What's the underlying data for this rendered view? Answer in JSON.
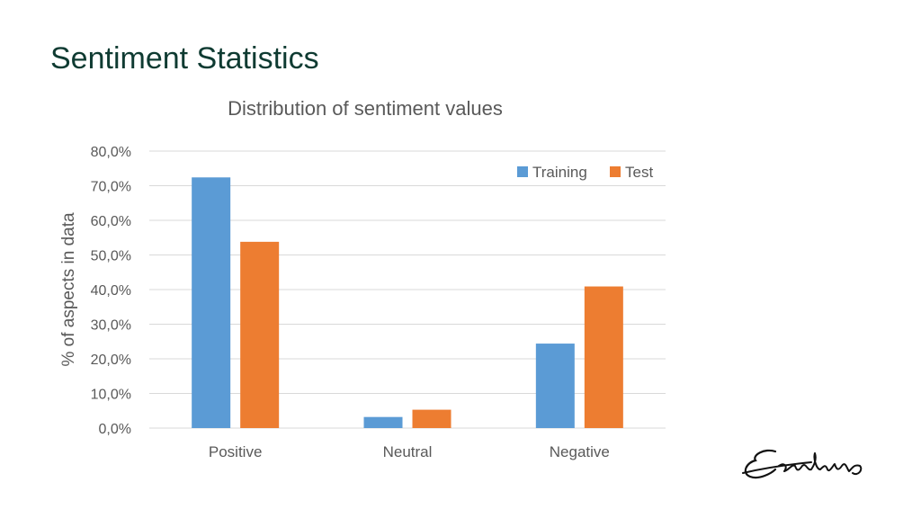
{
  "slide": {
    "title": "Sentiment Statistics"
  },
  "colors": {
    "training": "#5b9bd5",
    "test": "#ed7d31"
  },
  "chart_data": {
    "type": "bar",
    "title": "Distribution of sentiment values",
    "xlabel": "",
    "ylabel": "% of aspects in data",
    "categories": [
      "Positive",
      "Neutral",
      "Negative"
    ],
    "series": [
      {
        "name": "Training",
        "values": [
          72.4,
          3.2,
          24.4
        ]
      },
      {
        "name": "Test",
        "values": [
          53.8,
          5.3,
          40.9
        ]
      }
    ],
    "ylim": [
      0,
      80
    ],
    "yticks": [
      "0,0%",
      "10,0%",
      "20,0%",
      "30,0%",
      "40,0%",
      "50,0%",
      "60,0%",
      "70,0%",
      "80,0%"
    ],
    "grid": true,
    "legend": "top-right"
  }
}
